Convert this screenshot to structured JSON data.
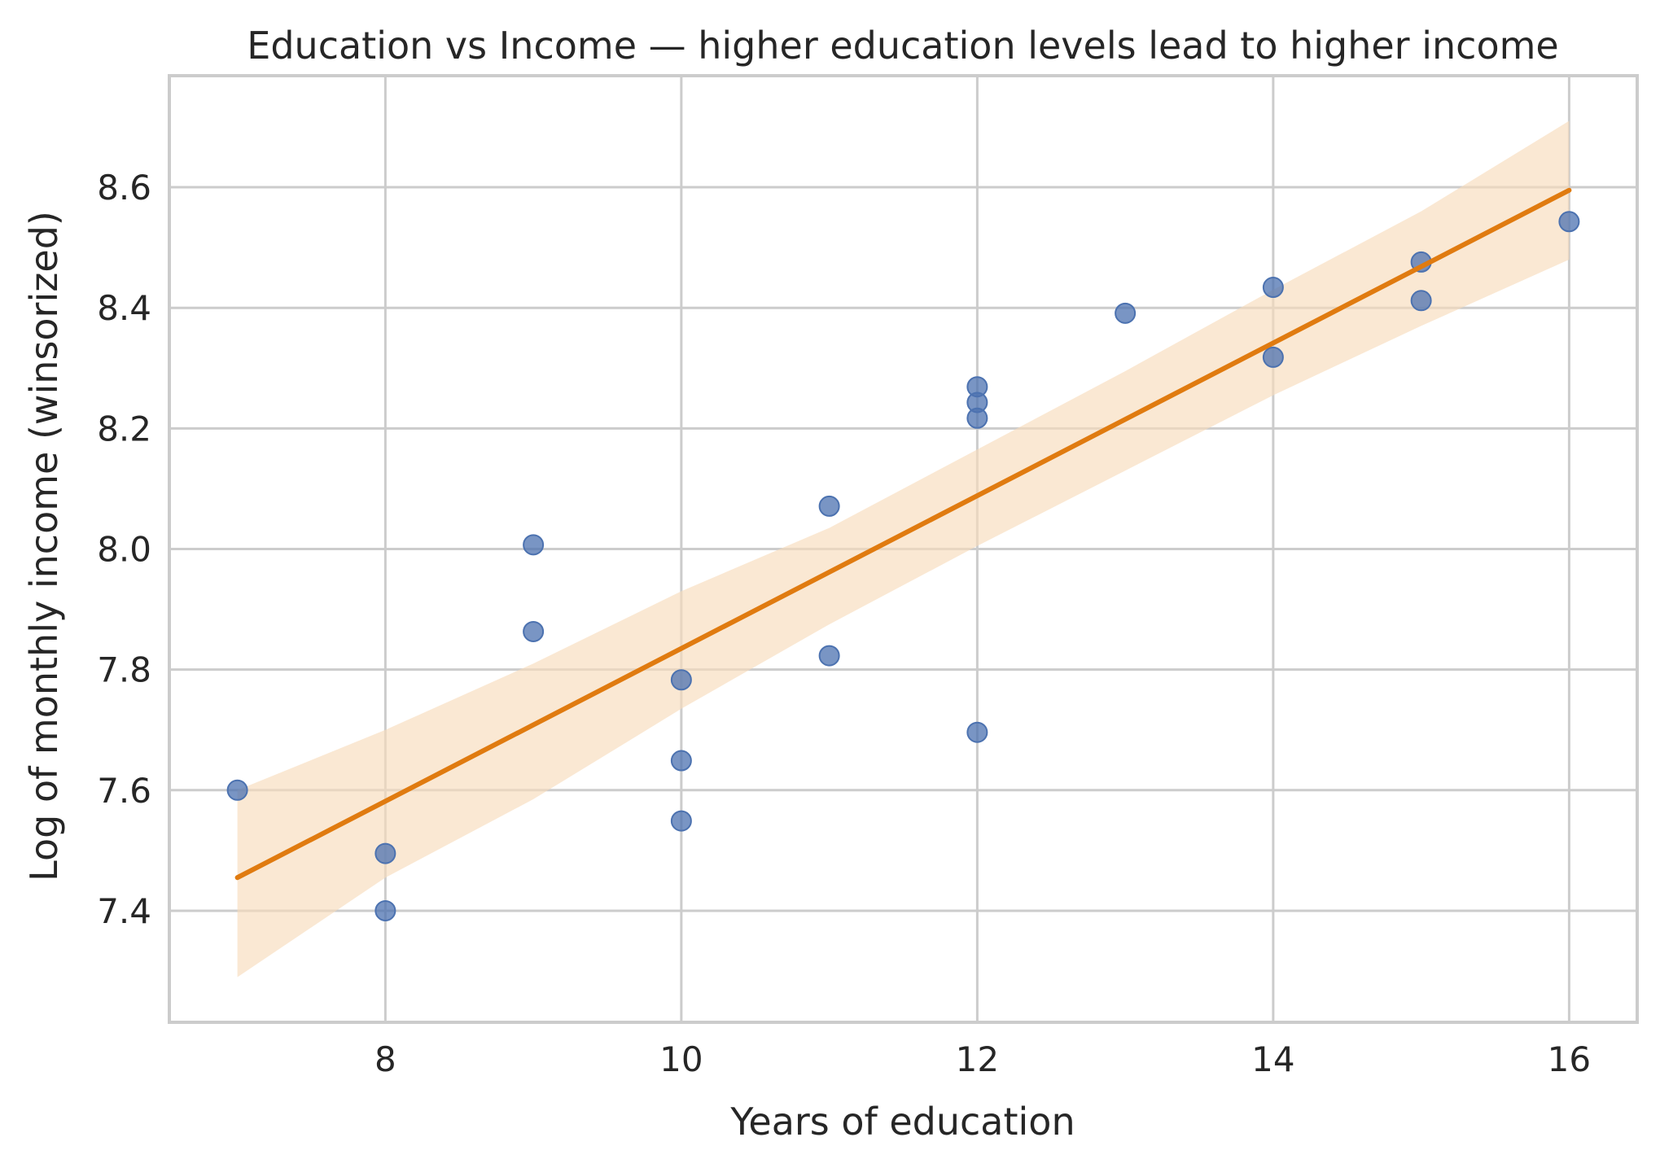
{
  "chart_data": {
    "type": "scatter",
    "title": "Education vs Income — higher education levels lead to higher income",
    "xlabel": "Years of education",
    "ylabel": "Log of monthly income (winsorized)",
    "xlim": [
      6.54,
      16.46
    ],
    "ylim": [
      7.215,
      8.785
    ],
    "xticks": [
      8,
      10,
      12,
      14,
      16
    ],
    "yticks": [
      7.4,
      7.6,
      7.8,
      8.0,
      8.2,
      8.4,
      8.6
    ],
    "grid": true,
    "points": [
      {
        "x": 7,
        "y": 7.6
      },
      {
        "x": 8,
        "y": 7.495
      },
      {
        "x": 8,
        "y": 7.4
      },
      {
        "x": 9,
        "y": 8.007
      },
      {
        "x": 9,
        "y": 7.863
      },
      {
        "x": 10,
        "y": 7.783
      },
      {
        "x": 10,
        "y": 7.649
      },
      {
        "x": 10,
        "y": 7.549
      },
      {
        "x": 11,
        "y": 8.071
      },
      {
        "x": 11,
        "y": 7.823
      },
      {
        "x": 12,
        "y": 8.269
      },
      {
        "x": 12,
        "y": 8.243
      },
      {
        "x": 12,
        "y": 8.217
      },
      {
        "x": 12,
        "y": 7.696
      },
      {
        "x": 13,
        "y": 8.391
      },
      {
        "x": 14,
        "y": 8.434
      },
      {
        "x": 14,
        "y": 8.318
      },
      {
        "x": 15,
        "y": 8.476
      },
      {
        "x": 15,
        "y": 8.412
      },
      {
        "x": 16,
        "y": 8.543
      }
    ],
    "regression": {
      "x": [
        7,
        16
      ],
      "y": [
        7.455,
        8.595
      ]
    },
    "confidence_band": {
      "x": [
        7,
        8,
        9,
        10,
        11,
        12,
        13,
        14,
        15,
        16
      ],
      "lower": [
        7.29,
        7.455,
        7.585,
        7.735,
        7.875,
        8.005,
        8.13,
        8.255,
        8.37,
        8.48
      ],
      "upper": [
        7.6,
        7.7,
        7.81,
        7.93,
        8.035,
        8.165,
        8.295,
        8.43,
        8.56,
        8.71
      ]
    },
    "colors": {
      "points": "#4c72b0",
      "regression_line": "#e07b10",
      "band": "#f8dcbc"
    }
  }
}
